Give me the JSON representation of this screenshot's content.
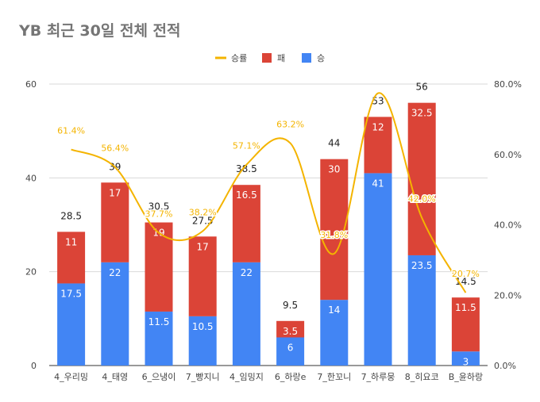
{
  "chart_data": {
    "type": "bar",
    "title": "YB 최근 30일 전체 전적",
    "categories": [
      "4_우리밍",
      "4_태영",
      "6_으냉이",
      "7_빵지니",
      "4_임밍지",
      "6_하랑e",
      "7_한꼬니",
      "7_하루뭉",
      "8_히요코",
      "B_윤하랑"
    ],
    "series": [
      {
        "name": "승",
        "stack": true,
        "values": [
          17.5,
          22,
          11.5,
          10.5,
          22,
          6,
          14,
          41,
          23.5,
          3
        ],
        "color": "#4285f4"
      },
      {
        "name": "패",
        "stack": true,
        "values": [
          11,
          17,
          19,
          17,
          16.5,
          3.5,
          30,
          12,
          32.5,
          11.5
        ],
        "color": "#db4437"
      }
    ],
    "totals": [
      28.5,
      39,
      30.5,
      27.5,
      38.5,
      9.5,
      44,
      53,
      56,
      14.5
    ],
    "line_series": {
      "name": "승률",
      "axis": "right",
      "values": [
        61.4,
        56.4,
        37.7,
        38.2,
        57.1,
        63.2,
        31.8,
        77.4,
        42.0,
        20.7
      ],
      "labels": [
        "61.4%",
        "56.4%",
        "37.7%",
        "38.2%",
        "57.1%",
        "63.2%",
        "31.8%",
        "",
        "42.0%",
        "20.7%"
      ],
      "color": "#f4b400"
    },
    "legend": {
      "position": "top",
      "items": [
        "승률",
        "패",
        "승"
      ]
    },
    "y_left": {
      "min": 0,
      "max": 60,
      "ticks": [
        "0",
        "20",
        "40",
        "60"
      ]
    },
    "y_right": {
      "min": 0,
      "max": 80,
      "ticks": [
        "0.0%",
        "20.0%",
        "40.0%",
        "60.0%",
        "80.0%"
      ]
    },
    "grid": true
  }
}
